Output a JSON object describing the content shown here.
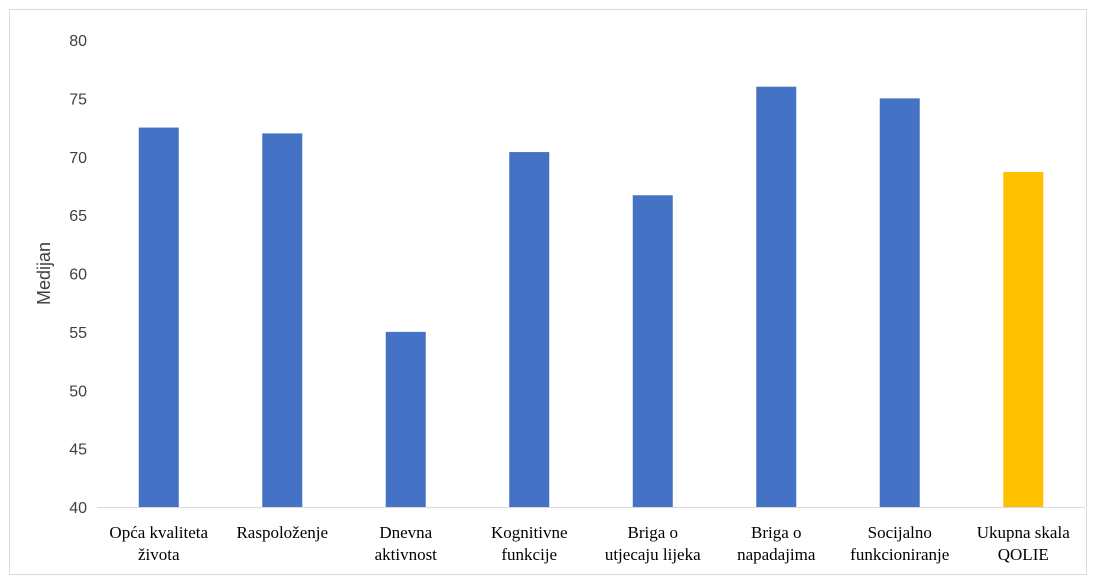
{
  "chart_data": {
    "type": "bar",
    "title": "",
    "xlabel": "",
    "ylabel": "Medijan",
    "ylim": [
      40,
      80
    ],
    "yticks": [
      40,
      45,
      50,
      55,
      60,
      65,
      70,
      75,
      80
    ],
    "grid": false,
    "legend": "none",
    "categories": [
      [
        "Opća kvaliteta",
        "života"
      ],
      [
        "Raspoloženje"
      ],
      [
        "Dnevna",
        "aktivnost"
      ],
      [
        "Kognitivne",
        "funkcije"
      ],
      [
        "Briga o",
        "utjecaju lijeka"
      ],
      [
        "Briga o",
        "napadajima"
      ],
      [
        "Socijalno",
        "funkcioniranje"
      ],
      [
        "Ukupna skala",
        "QOLIE"
      ]
    ],
    "values": [
      72.5,
      72,
      55,
      70.4,
      66.7,
      76,
      75,
      68.7
    ],
    "colors": [
      "#4472C4",
      "#4472C4",
      "#4472C4",
      "#4472C4",
      "#4472C4",
      "#4472C4",
      "#4472C4",
      "#FFC000"
    ]
  }
}
